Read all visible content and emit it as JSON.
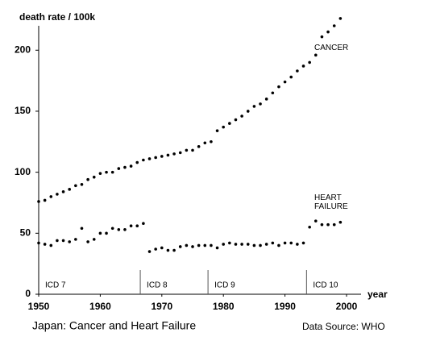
{
  "chart_data": {
    "type": "scatter",
    "title": "Japan: Cancer and Heart Failure",
    "source": "Data Source: WHO",
    "y_label": "death rate / 100k",
    "x_label": "year",
    "x": [
      1950,
      1951,
      1952,
      1953,
      1954,
      1955,
      1956,
      1957,
      1958,
      1959,
      1960,
      1961,
      1962,
      1963,
      1964,
      1965,
      1966,
      1967,
      1968,
      1969,
      1970,
      1971,
      1972,
      1973,
      1974,
      1975,
      1976,
      1977,
      1978,
      1979,
      1980,
      1981,
      1982,
      1983,
      1984,
      1985,
      1986,
      1987,
      1988,
      1989,
      1990,
      1991,
      1992,
      1993,
      1994,
      1995,
      1996,
      1997,
      1998,
      1999
    ],
    "series": [
      {
        "name": "CANCER",
        "color": "#000000",
        "values": [
          76,
          77,
          80,
          82,
          84,
          86,
          89,
          90,
          94,
          96,
          99,
          100,
          100,
          103,
          104,
          105,
          108,
          110,
          111,
          112,
          113,
          114,
          115,
          116,
          118,
          118,
          121,
          124,
          125,
          134,
          137,
          140,
          143,
          146,
          150,
          154,
          156,
          160,
          165,
          170,
          174,
          178,
          183,
          187,
          190,
          196,
          211,
          215,
          220,
          226
        ]
      },
      {
        "name": "HEART FAILURE",
        "color": "#000000",
        "values": [
          42,
          41,
          40,
          44,
          44,
          43,
          45,
          54,
          43,
          45,
          50,
          50,
          54,
          53,
          53,
          56,
          56,
          58,
          35,
          37,
          38,
          36,
          36,
          39,
          40,
          39,
          40,
          40,
          40,
          38,
          41,
          42,
          41,
          41,
          41,
          40,
          40,
          41,
          42,
          40,
          42,
          42,
          41,
          42,
          55,
          60,
          57,
          57,
          57,
          59
        ]
      }
    ],
    "icd_periods": [
      "ICD 7",
      "ICD 8",
      "ICD 9",
      "ICD 10"
    ],
    "icd_breaks": [
      1966.5,
      1977.5,
      1993.5
    ],
    "xlim": [
      1950,
      2000
    ],
    "xticks": [
      1950,
      1960,
      1970,
      1980,
      1990,
      2000
    ],
    "ylim": [
      0,
      220
    ],
    "yticks": [
      0,
      50,
      100,
      150,
      200
    ]
  }
}
